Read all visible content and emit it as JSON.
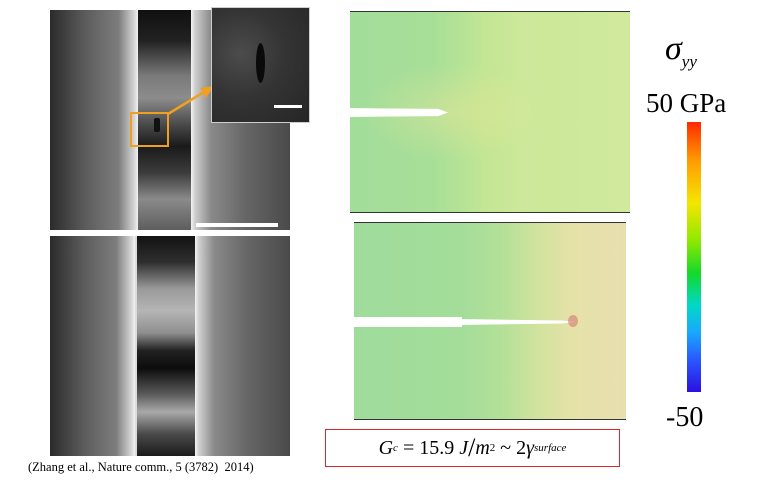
{
  "figure": {
    "colorbar": {
      "symbol": "σ",
      "symbol_subscript": "yy",
      "max_label": "50 GPa",
      "min_label": "-50",
      "colors": [
        "#ff2a00",
        "#ff9a00",
        "#f4e600",
        "#8fe800",
        "#14d92a",
        "#00d8c8",
        "#18a8ff",
        "#2a58ff",
        "#2a10e0"
      ]
    },
    "equation": {
      "lhs": "G",
      "lhs_sub": "c",
      "eq": " = 15.9 ",
      "unit_num": "J",
      "slash": "/",
      "unit_den": "m",
      "unit_den_sup": "2",
      "approx": " ~ 2",
      "gamma": "γ",
      "gamma_sub": "surface"
    },
    "citation": "(Zhang et al., Nature comm., 5 (3782)  2014)",
    "accent_colors": {
      "highlight_box": "#f0a020",
      "equation_border": "#d42a2a"
    }
  }
}
